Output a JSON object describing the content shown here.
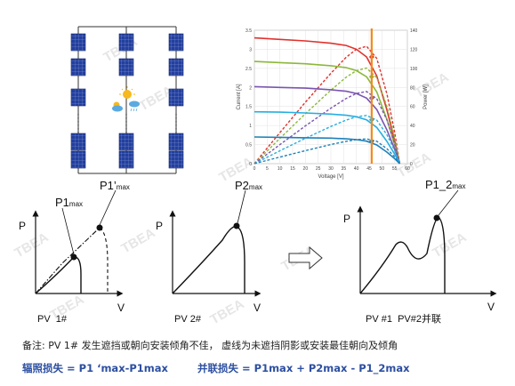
{
  "watermark": "TBEA",
  "iv_chart": {
    "type": "line",
    "xlabel": "Voltage [V]",
    "ylabel_left": "Current [A]",
    "ylabel_right": "Power [W]",
    "x_ticks": [
      "0",
      "5",
      "10",
      "15",
      "20",
      "25",
      "30",
      "35",
      "40",
      "45",
      "50",
      "55",
      "60"
    ],
    "y_left_ticks": [
      "0",
      "0.5",
      "1",
      "1.5",
      "2",
      "2.5",
      "3",
      "3.5"
    ],
    "y_right_ticks": [
      "0",
      "20",
      "40",
      "60",
      "80",
      "100",
      "120",
      "140"
    ],
    "series_colors": [
      "#e0322d",
      "#8bb83a",
      "#7a55b0",
      "#27aee0",
      "#1f80b8"
    ]
  },
  "chart_data": [
    {
      "type": "line",
      "title": "",
      "xlabel": "Voltage [V]",
      "ylabel": "Current [A]",
      "y2label": "Power [W]",
      "xlim": [
        0,
        60
      ],
      "ylim": [
        0,
        3.5
      ],
      "y2lim": [
        0,
        140
      ],
      "grid": true,
      "x": [
        0,
        10,
        20,
        30,
        36,
        40,
        44,
        48,
        52,
        55,
        57
      ],
      "series": [
        {
          "color": "#e0322d",
          "values": [
            3.3,
            3.26,
            3.22,
            3.16,
            3.1,
            3.0,
            2.8,
            2.3,
            1.4,
            0.6,
            0.0
          ]
        },
        {
          "color": "#8bb83a",
          "values": [
            2.68,
            2.65,
            2.62,
            2.57,
            2.52,
            2.44,
            2.28,
            1.88,
            1.15,
            0.5,
            0.0
          ]
        },
        {
          "color": "#7a55b0",
          "values": [
            2.02,
            2.0,
            1.98,
            1.94,
            1.9,
            1.84,
            1.72,
            1.42,
            0.88,
            0.38,
            0.0
          ]
        },
        {
          "color": "#27aee0",
          "values": [
            1.36,
            1.35,
            1.33,
            1.3,
            1.27,
            1.23,
            1.15,
            0.95,
            0.58,
            0.25,
            0.0
          ]
        },
        {
          "color": "#1f80b8",
          "values": [
            0.7,
            0.69,
            0.68,
            0.67,
            0.65,
            0.63,
            0.59,
            0.49,
            0.3,
            0.13,
            0.0
          ]
        }
      ],
      "marked_voltage": 46
    },
    {
      "type": "line",
      "xlabel": "V",
      "ylabel": "P",
      "caption": "PV  1#",
      "annotations": [
        "P1max",
        "P1’max"
      ]
    },
    {
      "type": "line",
      "xlabel": "V",
      "ylabel": "P",
      "caption": "PV 2#",
      "annotations": [
        "P2max"
      ]
    },
    {
      "type": "line",
      "xlabel": "V",
      "ylabel": "P",
      "caption": "PV #1  PV#2并联",
      "annotations": [
        "P1_2max"
      ]
    }
  ],
  "pv1": {
    "p_label": "P",
    "v_label": "V",
    "caption": "PV  1#",
    "p1_base": "P1",
    "p1_sub": "max",
    "p1p_base": "P1’",
    "p1p_sub": "max"
  },
  "pv2": {
    "p_label": "P",
    "v_label": "V",
    "caption": "PV 2#",
    "p2_base": "P2",
    "p2_sub": "max"
  },
  "pv12": {
    "p_label": "P",
    "v_label": "V",
    "caption": "PV #1  PV#2并联",
    "p12_base": "P1_2",
    "p12_sub": "max"
  },
  "note": "备注: PV 1# 发生遮挡或朝向安装倾角不佳，  虚线为未遮挡阴影或安装最佳朝向及倾角",
  "formula_left": "辐照损失 = P1 ‘max-P1max",
  "formula_right": "并联损失 = P1max + P2max - P1_2max",
  "colors": {
    "axis_orange": "#f08a1c",
    "formula_blue": "#2c4fa0",
    "panel_blue": "#1f3d9a",
    "sun_yellow": "#f6b91e",
    "cloud_blue": "#5aaae0"
  }
}
